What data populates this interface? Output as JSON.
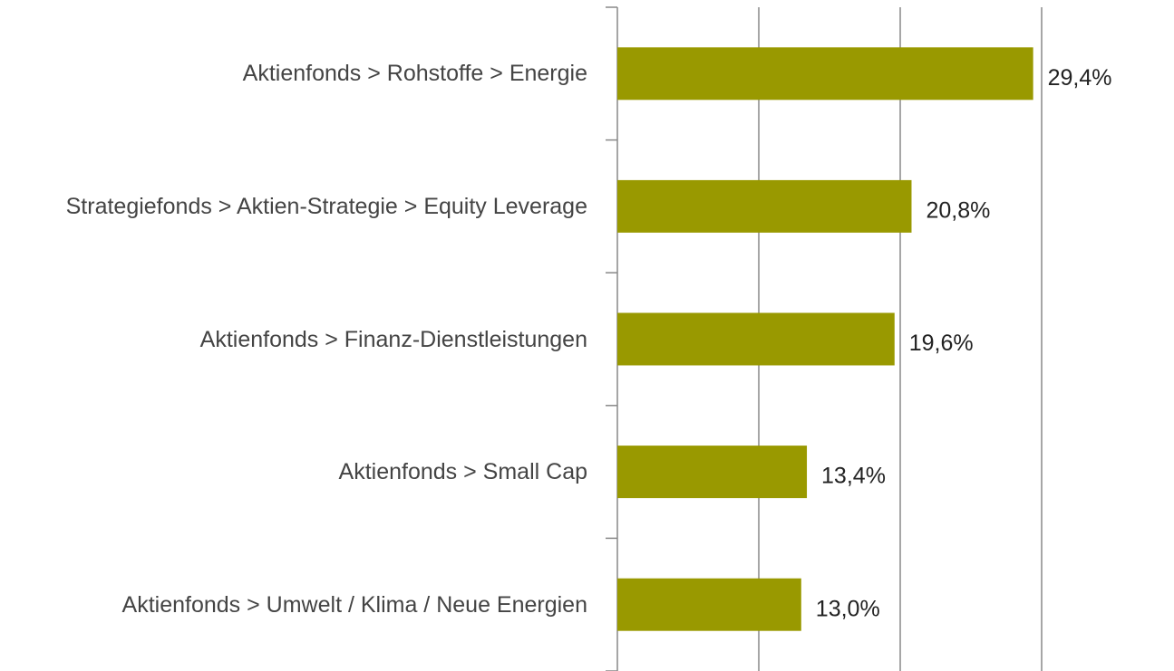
{
  "chart_data": {
    "type": "barh",
    "categories": [
      "Aktienfonds > Rohstoffe > Energie",
      "Strategiefonds > Aktien-Strategie > Equity Leverage",
      "Aktienfonds > Finanz-Dienstleistungen",
      "Aktienfonds > Small Cap",
      "Aktienfonds > Umwelt / Klima / Neue Energien"
    ],
    "values": [
      29.4,
      20.8,
      19.6,
      13.4,
      13.0
    ],
    "value_labels": [
      "29,4%",
      "20,8%",
      "19,6%",
      "13,4%",
      "13,0%"
    ],
    "color": "#999900",
    "xlim": [
      0,
      30
    ],
    "xticks": [
      0,
      10,
      20,
      30
    ],
    "grid": true
  }
}
